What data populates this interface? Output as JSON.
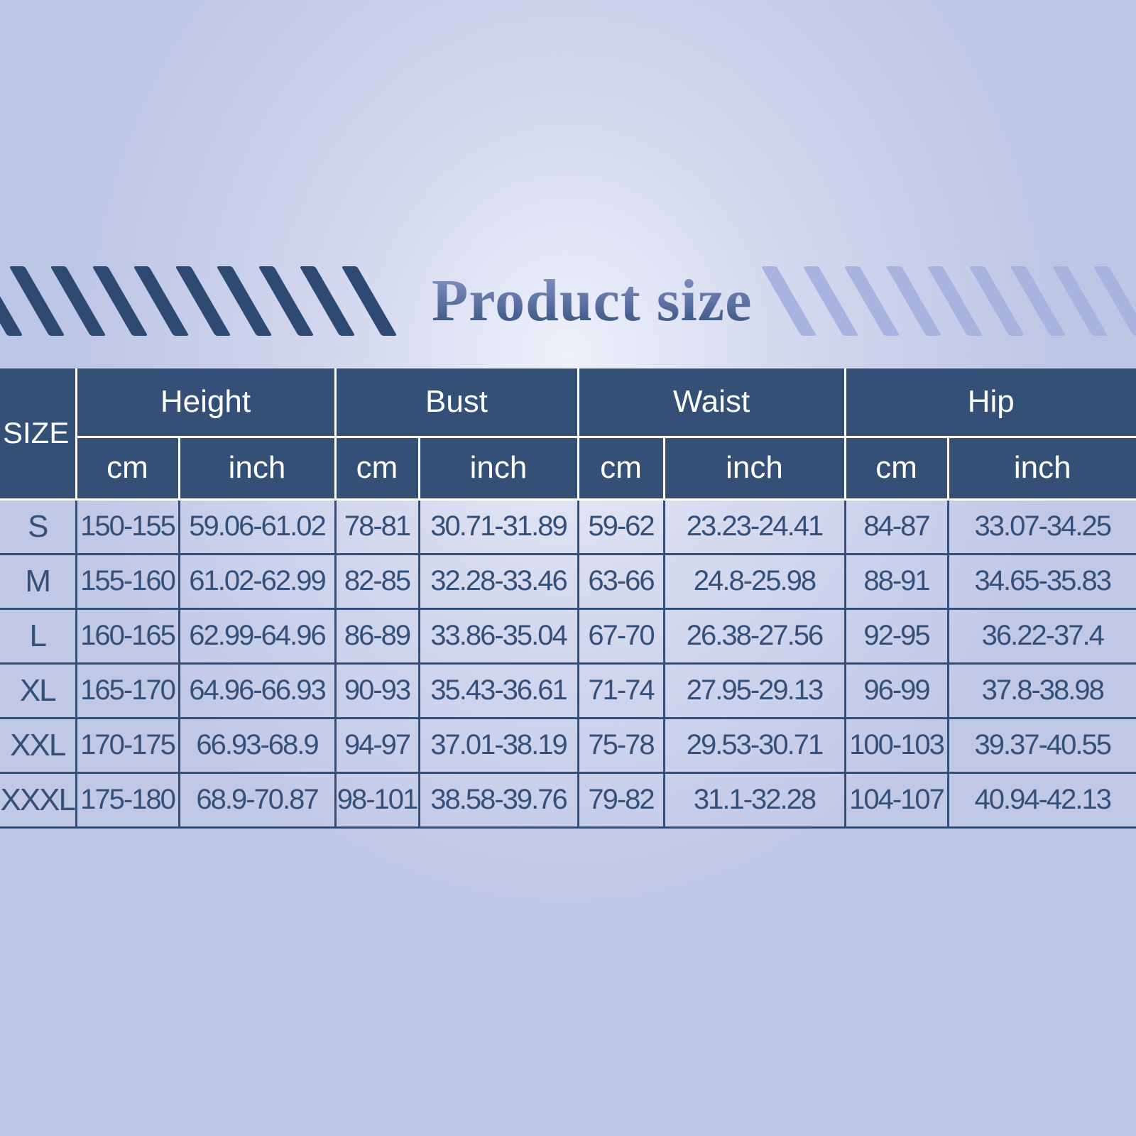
{
  "title": "Product size",
  "colors": {
    "header_bg": "#345077",
    "text": "#34507a",
    "stripe_dark": "#2f4a72",
    "stripe_light": "#a9b3df"
  },
  "table": {
    "size_header": "SIZE",
    "groups": [
      "Height",
      "Bust",
      "Waist",
      "Hip"
    ],
    "units": [
      "cm",
      "inch",
      "cm",
      "inch",
      "cm",
      "inch",
      "cm",
      "inch"
    ],
    "rows": [
      [
        "S",
        "150-155",
        "59.06-61.02",
        "78-81",
        "30.71-31.89",
        "59-62",
        "23.23-24.41",
        "84-87",
        "33.07-34.25"
      ],
      [
        "M",
        "155-160",
        "61.02-62.99",
        "82-85",
        "32.28-33.46",
        "63-66",
        "24.8-25.98",
        "88-91",
        "34.65-35.83"
      ],
      [
        "L",
        "160-165",
        "62.99-64.96",
        "86-89",
        "33.86-35.04",
        "67-70",
        "26.38-27.56",
        "92-95",
        "36.22-37.4"
      ],
      [
        "XL",
        "165-170",
        "64.96-66.93",
        "90-93",
        "35.43-36.61",
        "71-74",
        "27.95-29.13",
        "96-99",
        "37.8-38.98"
      ],
      [
        "XXL",
        "170-175",
        "66.93-68.9",
        "94-97",
        "37.01-38.19",
        "75-78",
        "29.53-30.71",
        "100-103",
        "39.37-40.55"
      ],
      [
        "XXXL",
        "175-180",
        "68.9-70.87",
        "98-101",
        "38.58-39.76",
        "79-82",
        "31.1-32.28",
        "104-107",
        "40.94-42.13"
      ]
    ]
  }
}
